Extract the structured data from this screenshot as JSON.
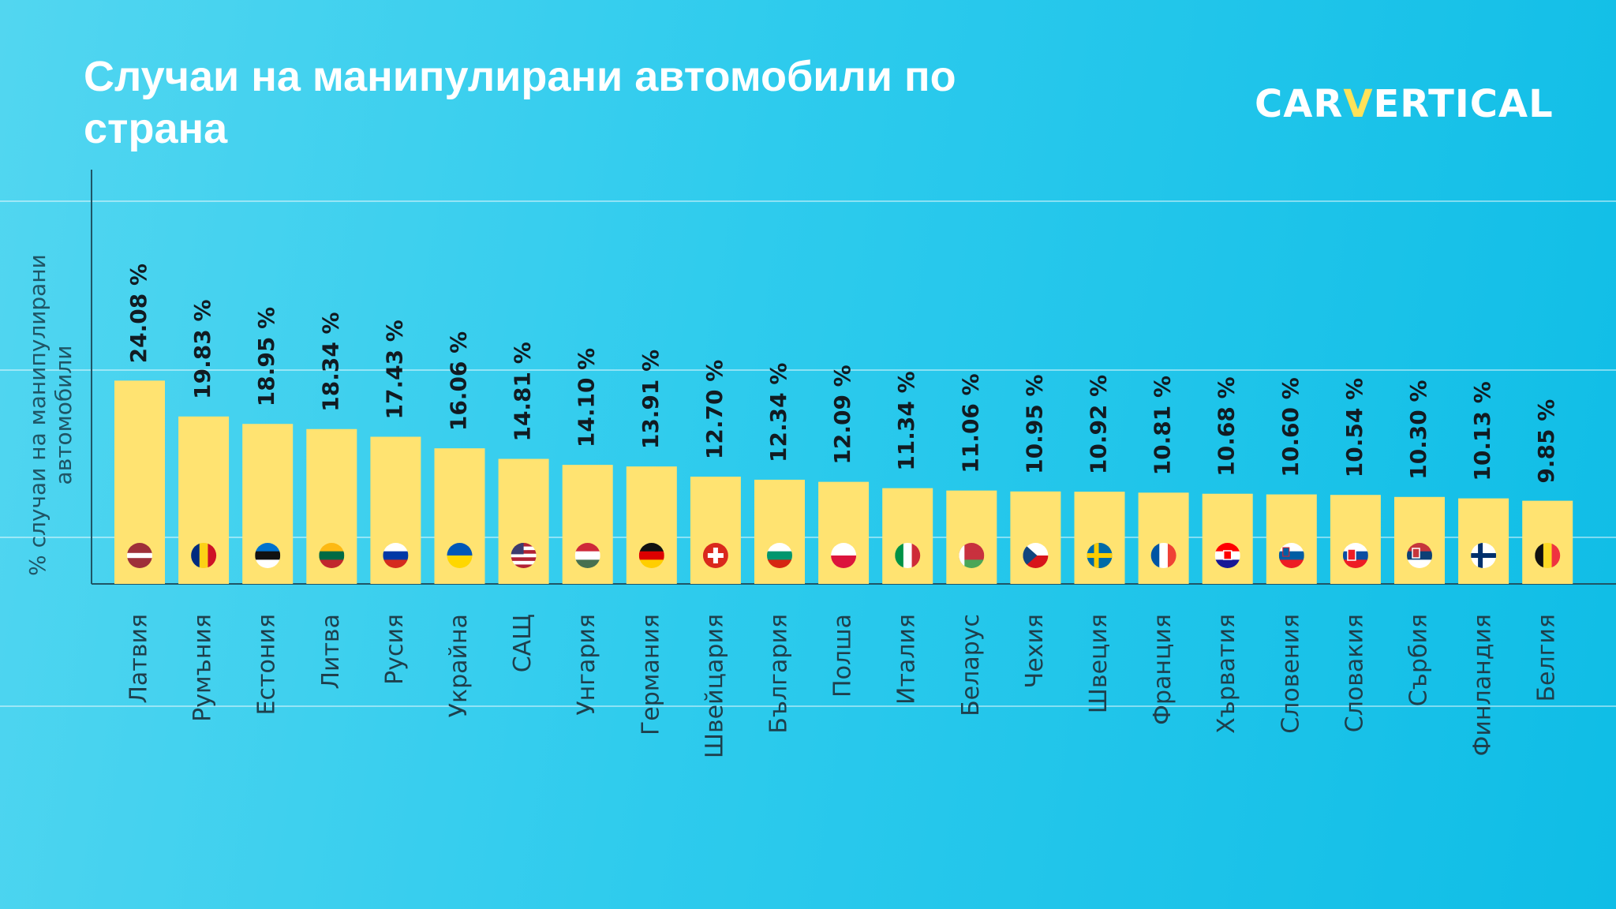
{
  "title": "Случаи на манипулирани автомобили по страна",
  "logo": {
    "part1": "CAR",
    "part2": "V",
    "part3": "ERTICAL"
  },
  "colors": {
    "bar": "#ffe371",
    "background_light": "#52d6f0",
    "background_dark": "#0fbde6",
    "axis": "#1f5566"
  },
  "chart_data": {
    "type": "bar",
    "title": "Случаи на манипулирани автомобили по страна",
    "ylabel": "% случаи на манипулирани автомобили",
    "xlabel": "",
    "ylim": [
      0,
      30
    ],
    "grid": false,
    "value_suffix": " %",
    "categories": [
      "Латвия",
      "Румъния",
      "Естония",
      "Литва",
      "Русия",
      "Украйна",
      "САЩ",
      "Унгария",
      "Германия",
      "Швейцария",
      "България",
      "Полша",
      "Италия",
      "Беларус",
      "Чехия",
      "Швеция",
      "Франция",
      "Хърватия",
      "Словения",
      "Словакия",
      "Сърбия",
      "Финландия",
      "Белгия"
    ],
    "values": [
      24.08,
      19.83,
      18.95,
      18.34,
      17.43,
      16.06,
      14.81,
      14.1,
      13.91,
      12.7,
      12.34,
      12.09,
      11.34,
      11.06,
      10.95,
      10.92,
      10.81,
      10.68,
      10.6,
      10.54,
      10.3,
      10.13,
      9.85
    ],
    "value_labels": [
      "24.08 %",
      "19.83 %",
      "18.95 %",
      "18.34 %",
      "17.43 %",
      "16.06 %",
      "14.81 %",
      "14.10 %",
      "13.91 %",
      "12.70 %",
      "12.34 %",
      "12.09 %",
      "11.34 %",
      "11.06 %",
      "10.95 %",
      "10.92 %",
      "10.81 %",
      "10.68 %",
      "10.60 %",
      "10.54 %",
      "10.30 %",
      "10.13 %",
      "9.85 %"
    ],
    "flags": [
      "latvia-flag-icon",
      "romania-flag-icon",
      "estonia-flag-icon",
      "lithuania-flag-icon",
      "russia-flag-icon",
      "ukraine-flag-icon",
      "usa-flag-icon",
      "hungary-flag-icon",
      "germany-flag-icon",
      "switzerland-flag-icon",
      "bulgaria-flag-icon",
      "poland-flag-icon",
      "italy-flag-icon",
      "belarus-flag-icon",
      "czechia-flag-icon",
      "sweden-flag-icon",
      "france-flag-icon",
      "croatia-flag-icon",
      "slovenia-flag-icon",
      "slovakia-flag-icon",
      "serbia-flag-icon",
      "finland-flag-icon",
      "belgium-flag-icon"
    ]
  }
}
